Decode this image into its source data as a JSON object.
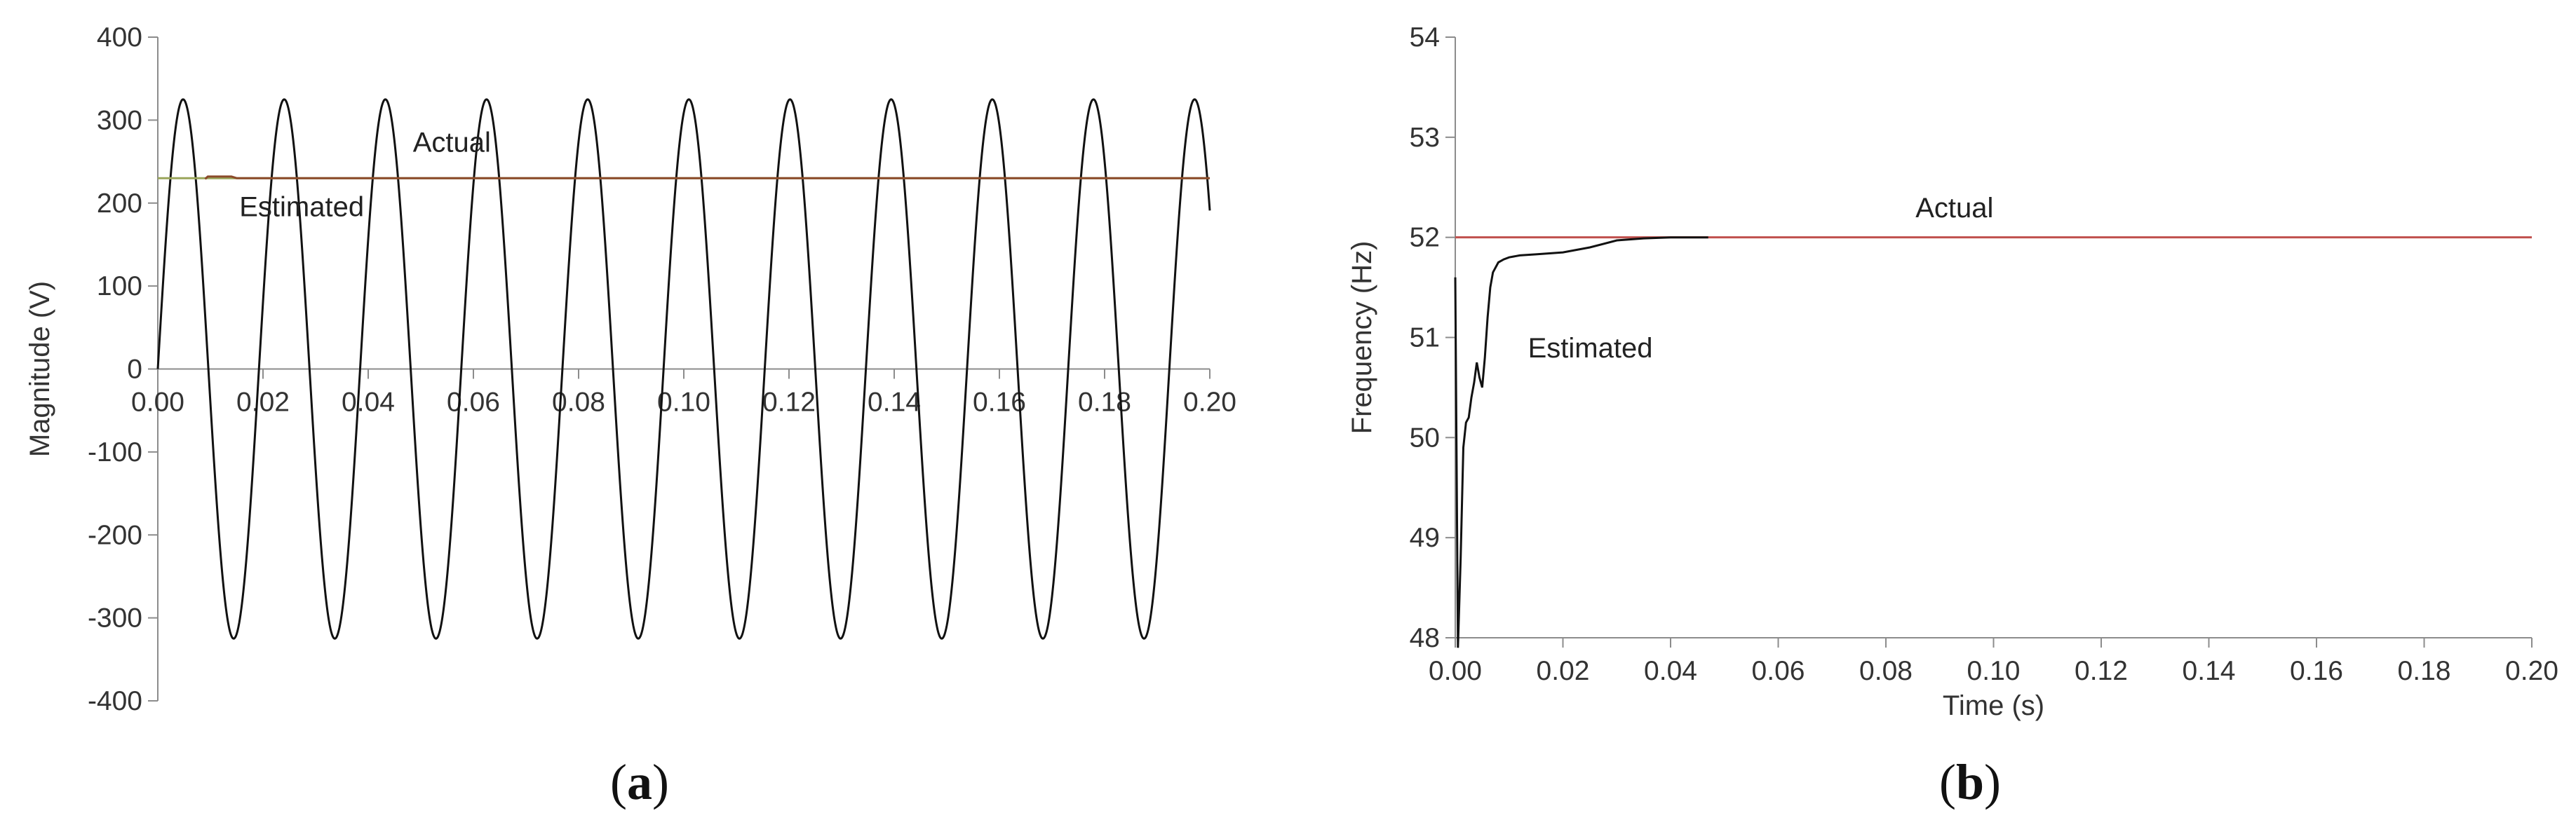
{
  "chart_data": [
    {
      "panel": "(a)",
      "panel_open": "(",
      "panel_letter": "a",
      "panel_close": ")",
      "type": "line",
      "title": "",
      "xlabel": "",
      "ylabel": "Magnitude  (V)",
      "xlim": [
        0,
        0.2
      ],
      "ylim": [
        -400,
        400
      ],
      "x_ticks": [
        "0.00",
        "0.02",
        "0.04",
        "0.06",
        "0.08",
        "0.10",
        "0.12",
        "0.14",
        "0.16",
        "0.18",
        "0.20"
      ],
      "y_ticks": [
        "400",
        "300",
        "200",
        "100",
        "0",
        "-100",
        "-200",
        "-300",
        "-400"
      ],
      "grid": false,
      "legend": "none",
      "series": [
        {
          "name": "",
          "kind": "sine",
          "amplitude": 325,
          "frequency_hz": 52,
          "phase_deg": 0,
          "color": "#111111"
        },
        {
          "name": "Actual",
          "kind": "constant",
          "value": 230,
          "color": "#9aa55a"
        },
        {
          "name": "Estimated",
          "kind": "points",
          "x": [
            0.009,
            0.0095,
            0.012,
            0.014,
            0.015,
            0.2
          ],
          "y": [
            229,
            232,
            232,
            232,
            230,
            230
          ],
          "color": "#8b4a2a"
        }
      ],
      "annotations": [
        {
          "text": "Actual",
          "x": 0.0485,
          "y": 262
        },
        {
          "text": "Estimated",
          "x": 0.0155,
          "y": 184
        }
      ]
    },
    {
      "panel": "(b)",
      "panel_open": "(",
      "panel_letter": "b",
      "panel_close": ")",
      "type": "line",
      "title": "",
      "xlabel": "Time (s)",
      "ylabel": "Frequency (Hz)",
      "xlim": [
        0,
        0.2
      ],
      "ylim": [
        48,
        54
      ],
      "x_ticks": [
        "0.00",
        "0.02",
        "0.04",
        "0.06",
        "0.08",
        "0.10",
        "0.12",
        "0.14",
        "0.16",
        "0.18",
        "0.20"
      ],
      "y_ticks": [
        "54",
        "53",
        "52",
        "51",
        "50",
        "49",
        "48"
      ],
      "grid": false,
      "legend": "none",
      "series": [
        {
          "name": "Actual",
          "kind": "constant",
          "value": 52,
          "color": "#c0504d"
        },
        {
          "name": "Estimated",
          "kind": "points",
          "color": "#111111",
          "x": [
            0.0,
            0.0005,
            0.001,
            0.0015,
            0.002,
            0.0025,
            0.003,
            0.0035,
            0.004,
            0.0045,
            0.005,
            0.0055,
            0.006,
            0.0065,
            0.007,
            0.008,
            0.009,
            0.01,
            0.012,
            0.015,
            0.02,
            0.025,
            0.03,
            0.035,
            0.04,
            0.047
          ],
          "y": [
            51.6,
            47.9,
            48.8,
            49.9,
            50.15,
            50.2,
            50.4,
            50.55,
            50.75,
            50.6,
            50.5,
            50.8,
            51.2,
            51.5,
            51.65,
            51.75,
            51.78,
            51.8,
            51.82,
            51.83,
            51.85,
            51.9,
            51.97,
            51.99,
            52.0,
            52.0
          ]
        }
      ],
      "annotations": [
        {
          "text": "Actual",
          "x": 0.0855,
          "y": 52.2
        },
        {
          "text": "Estimated",
          "x": 0.0135,
          "y": 50.8
        }
      ]
    }
  ]
}
